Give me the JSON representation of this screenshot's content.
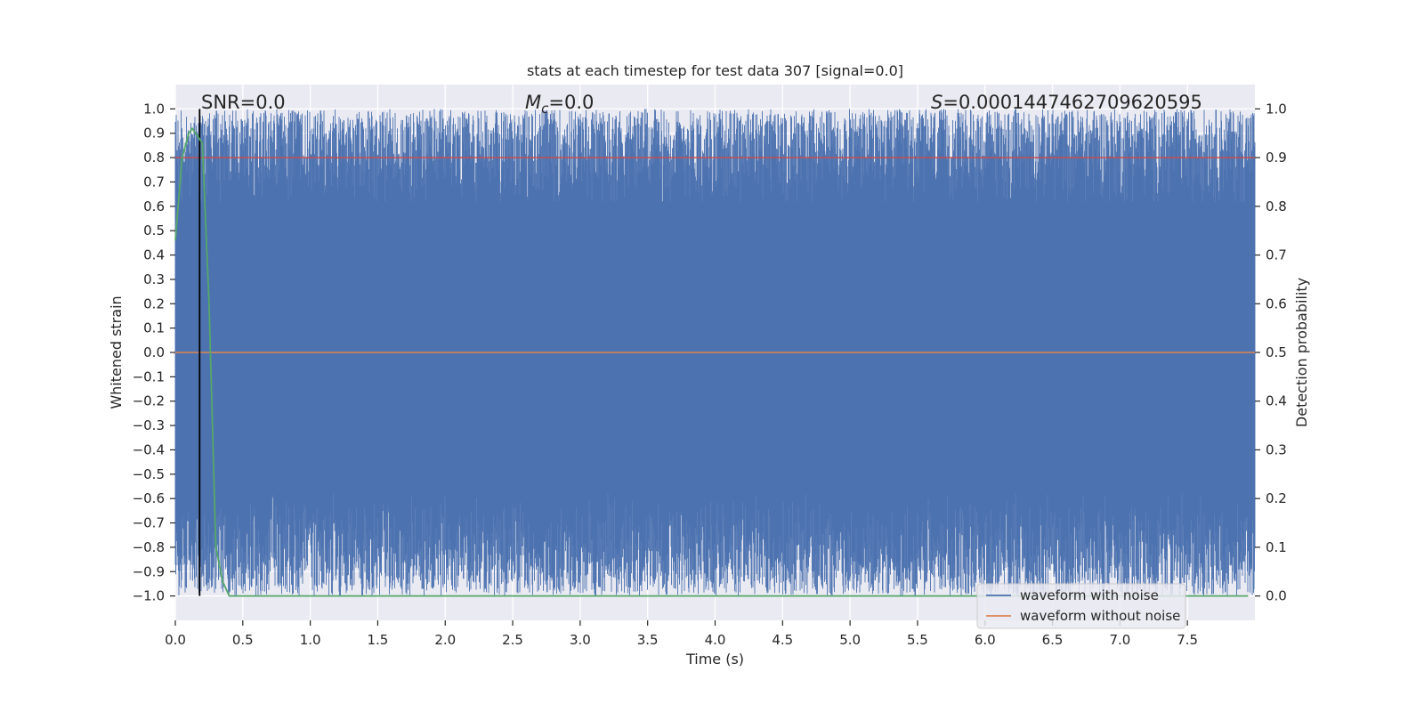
{
  "chart_data": {
    "type": "line",
    "title": "stats at each timestep for test data 307 [signal=0.0]",
    "xlabel": "Time (s)",
    "ylabel": "Whitened strain",
    "ylabel_right": "Detection probability",
    "xlim": [
      0.0,
      8.0
    ],
    "ylim": [
      -1.1,
      1.1
    ],
    "ylim_right": [
      -0.05,
      1.05
    ],
    "x_ticks": [
      0.0,
      0.5,
      1.0,
      1.5,
      2.0,
      2.5,
      3.0,
      3.5,
      4.0,
      4.5,
      5.0,
      5.5,
      6.0,
      6.5,
      7.0,
      7.5
    ],
    "x_tick_labels": [
      "0.0",
      "0.5",
      "1.0",
      "1.5",
      "2.0",
      "2.5",
      "3.0",
      "3.5",
      "4.0",
      "4.5",
      "5.0",
      "5.5",
      "6.0",
      "6.5",
      "7.0",
      "7.5"
    ],
    "y_ticks": [
      1.0,
      0.9,
      0.8,
      0.7,
      0.6,
      0.5,
      0.4,
      0.3,
      0.2,
      0.1,
      0.0,
      -0.1,
      -0.2,
      -0.3,
      -0.4,
      -0.5,
      -0.6,
      -0.7,
      -0.8,
      -0.9,
      -1.0
    ],
    "y_tick_labels": [
      "1.0",
      "0.9",
      "0.8",
      "0.7",
      "0.6",
      "0.5",
      "0.4",
      "0.3",
      "0.2",
      "0.1",
      "0.0",
      "−0.1",
      "−0.2",
      "−0.3",
      "−0.4",
      "−0.5",
      "−0.6",
      "−0.7",
      "−0.8",
      "−0.9",
      "−1.0"
    ],
    "y_right_ticks": [
      1.0,
      0.9,
      0.8,
      0.7,
      0.6,
      0.5,
      0.4,
      0.3,
      0.2,
      0.1,
      0.0
    ],
    "y_right_tick_labels": [
      "1.0",
      "0.9",
      "0.8",
      "0.7",
      "0.6",
      "0.5",
      "0.4",
      "0.3",
      "0.2",
      "0.1",
      "0.0"
    ],
    "annotations": {
      "snr": "SNR=0.0",
      "mc_symbol": "M",
      "mc_subscript": "c",
      "mc_value": "=0.0",
      "s_symbol": "S",
      "s_value": "=0.0001447462709620595"
    },
    "series": [
      {
        "name": "waveform with noise",
        "color": "#4c72b0",
        "axis": "left",
        "description": "dense whitened noise spanning roughly -1.0 to 1.0",
        "range": [
          -1.0,
          1.0
        ]
      },
      {
        "name": "waveform without noise",
        "color": "#dd8452",
        "axis": "left",
        "x": [
          0.0,
          8.0
        ],
        "y": [
          0.0,
          0.0
        ]
      },
      {
        "name": "detection probability",
        "color": "#55a868",
        "axis": "right",
        "x": [
          0.0,
          0.05,
          0.1,
          0.125,
          0.15,
          0.2,
          0.25,
          0.3,
          0.35,
          0.4,
          0.45,
          0.5,
          1.0,
          2.0,
          3.0,
          4.0,
          5.0,
          6.0,
          7.0,
          7.95
        ],
        "y": [
          0.73,
          0.9,
          0.95,
          0.96,
          0.95,
          0.93,
          0.6,
          0.1,
          0.03,
          0.0,
          0.0,
          0.0,
          0.0,
          0.0,
          0.0,
          0.0,
          0.0,
          0.0,
          0.0,
          0.0
        ]
      },
      {
        "name": "threshold",
        "color": "#c44e52",
        "axis": "right",
        "x": [
          0.0,
          8.0
        ],
        "y": [
          0.9,
          0.9
        ]
      },
      {
        "name": "event marker",
        "color": "#000000",
        "axis": "left",
        "x": [
          0.18,
          0.18
        ],
        "y": [
          -1.0,
          1.0
        ]
      }
    ],
    "legend": {
      "position": "lower-right",
      "entries": [
        {
          "label": "waveform with noise",
          "color": "#4c72b0"
        },
        {
          "label": "waveform without noise",
          "color": "#dd8452"
        }
      ]
    },
    "grid": true,
    "background": "#eaeaf2"
  }
}
